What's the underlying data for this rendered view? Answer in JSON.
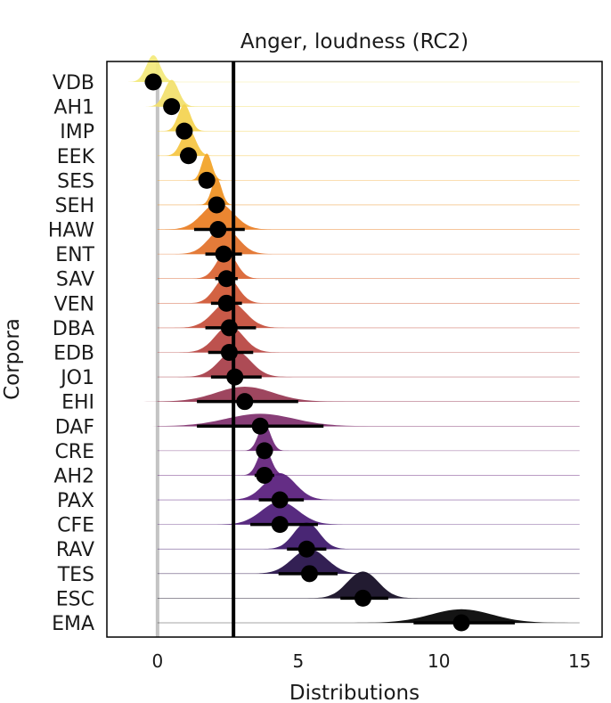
{
  "chart_data": {
    "type": "ridgeline-interval",
    "title": "Anger, loudness (RC2)",
    "xlabel": "Distributions",
    "ylabel": "Corpora",
    "xlim": [
      -1.8,
      15.8
    ],
    "xticks": [
      0,
      5,
      10,
      15
    ],
    "reference_lines": {
      "zero": 0,
      "mean": 2.7
    },
    "grid": false,
    "legend": "none",
    "rows": [
      {
        "label": "VDB",
        "median": -0.15,
        "ci": [
          -0.45,
          0.15
        ],
        "spread": 0.25,
        "color": "#f3e97a"
      },
      {
        "label": "AH1",
        "median": 0.5,
        "ci": [
          0.3,
          0.75
        ],
        "spread": 0.25,
        "color": "#f2e06a"
      },
      {
        "label": "IMP",
        "median": 0.95,
        "ci": [
          0.75,
          1.15
        ],
        "spread": 0.22,
        "color": "#f4d24e"
      },
      {
        "label": "EEK",
        "median": 1.1,
        "ci": [
          0.8,
          1.4
        ],
        "spread": 0.25,
        "color": "#f5c440"
      },
      {
        "label": "SES",
        "median": 1.75,
        "ci": [
          1.55,
          1.95
        ],
        "spread": 0.18,
        "color": "#f2a224"
      },
      {
        "label": "SEH",
        "median": 2.1,
        "ci": [
          1.95,
          2.25
        ],
        "spread": 0.18,
        "color": "#ee8f1e"
      },
      {
        "label": "HAW",
        "median": 2.15,
        "ci": [
          1.3,
          3.1
        ],
        "spread": 0.55,
        "color": "#e97c20"
      },
      {
        "label": "ENT",
        "median": 2.35,
        "ci": [
          1.7,
          3.0
        ],
        "spread": 0.5,
        "color": "#e27028"
      },
      {
        "label": "SAV",
        "median": 2.45,
        "ci": [
          2.05,
          2.85
        ],
        "spread": 0.35,
        "color": "#d9612f"
      },
      {
        "label": "VEN",
        "median": 2.45,
        "ci": [
          1.9,
          3.0
        ],
        "spread": 0.4,
        "color": "#cf5532"
      },
      {
        "label": "DBA",
        "median": 2.55,
        "ci": [
          1.7,
          3.5
        ],
        "spread": 0.55,
        "color": "#c44c38"
      },
      {
        "label": "EDB",
        "median": 2.55,
        "ci": [
          1.8,
          3.4
        ],
        "spread": 0.5,
        "color": "#b7433f"
      },
      {
        "label": "JO1",
        "median": 2.75,
        "ci": [
          1.9,
          3.7
        ],
        "spread": 0.55,
        "color": "#a63c47"
      },
      {
        "label": "EHI",
        "median": 3.1,
        "ci": [
          1.4,
          5.0
        ],
        "spread": 1.0,
        "color": "#963651"
      },
      {
        "label": "DAF",
        "median": 3.65,
        "ci": [
          1.4,
          5.9
        ],
        "spread": 1.2,
        "color": "#7e2e6b"
      },
      {
        "label": "CRE",
        "median": 3.8,
        "ci": [
          3.5,
          4.1
        ],
        "spread": 0.22,
        "color": "#6d2575"
      },
      {
        "label": "AH2",
        "median": 3.8,
        "ci": [
          3.45,
          4.15
        ],
        "spread": 0.24,
        "color": "#621f79"
      },
      {
        "label": "PAX",
        "median": 4.35,
        "ci": [
          3.6,
          5.2
        ],
        "spread": 0.55,
        "color": "#571b7b"
      },
      {
        "label": "CFE",
        "median": 4.35,
        "ci": [
          3.3,
          5.7
        ],
        "spread": 0.65,
        "color": "#4a1975"
      },
      {
        "label": "RAV",
        "median": 5.3,
        "ci": [
          4.6,
          6.0
        ],
        "spread": 0.45,
        "color": "#3a1468"
      },
      {
        "label": "TES",
        "median": 5.4,
        "ci": [
          4.3,
          6.4
        ],
        "spread": 0.6,
        "color": "#220d45"
      },
      {
        "label": "ESC",
        "median": 7.3,
        "ci": [
          6.5,
          8.2
        ],
        "spread": 0.55,
        "color": "#0f0820"
      },
      {
        "label": "EMA",
        "median": 10.8,
        "ci": [
          9.1,
          12.7
        ],
        "spread": 1.1,
        "color": "#000000"
      }
    ]
  }
}
